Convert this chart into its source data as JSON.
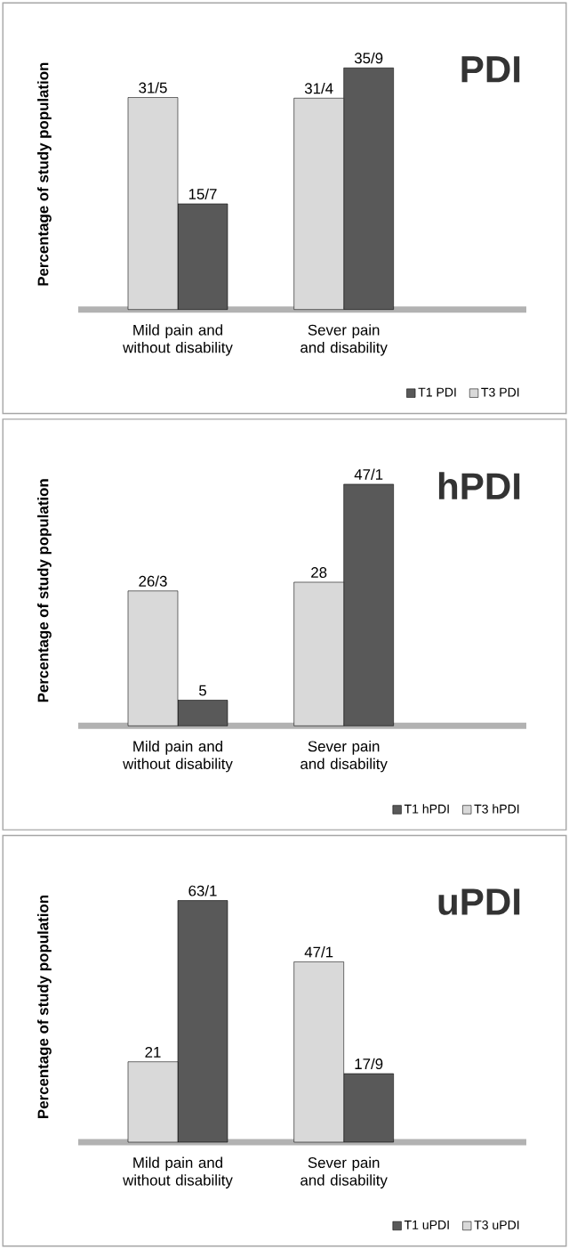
{
  "chart_data": [
    {
      "type": "bar",
      "title": "PDI",
      "ylabel": "Percentage of study population",
      "categories": [
        "Mild pain and without disability",
        "Sever pain and disability"
      ],
      "legend": "bottom right",
      "series": [
        {
          "name": "T1 PDI",
          "color": "#595959",
          "values": [
            15.7,
            35.9
          ],
          "value_labels": [
            "15/7",
            "35/9"
          ]
        },
        {
          "name": "T3 PDI",
          "color": "#d9d9d9",
          "values": [
            31.5,
            31.4
          ],
          "value_labels": [
            "31/5",
            "31/4"
          ]
        }
      ]
    },
    {
      "type": "bar",
      "title": "hPDI",
      "ylabel": "Percentage of study population",
      "categories": [
        "Mild pain and without disability",
        "Sever pain and disability"
      ],
      "legend": "bottom right",
      "series": [
        {
          "name": "T1 hPDI",
          "color": "#595959",
          "values": [
            5,
            47.1
          ],
          "value_labels": [
            "5",
            "47/1"
          ]
        },
        {
          "name": "T3 hPDI",
          "color": "#d9d9d9",
          "values": [
            26.3,
            28
          ],
          "value_labels": [
            "26/3",
            "28"
          ]
        }
      ]
    },
    {
      "type": "bar",
      "title": "uPDI",
      "ylabel": "Percentage of study population",
      "categories": [
        "Mild pain and without disability",
        "Sever pain and disability"
      ],
      "legend": "bottom right",
      "series": [
        {
          "name": "T1 uPDI",
          "color": "#595959",
          "values": [
            63.1,
            17.9
          ],
          "value_labels": [
            "63/1",
            "17/9"
          ]
        },
        {
          "name": "T3 uPDI",
          "color": "#d9d9d9",
          "values": [
            21,
            47.1
          ],
          "value_labels": [
            "21",
            "47/1"
          ]
        }
      ]
    }
  ]
}
